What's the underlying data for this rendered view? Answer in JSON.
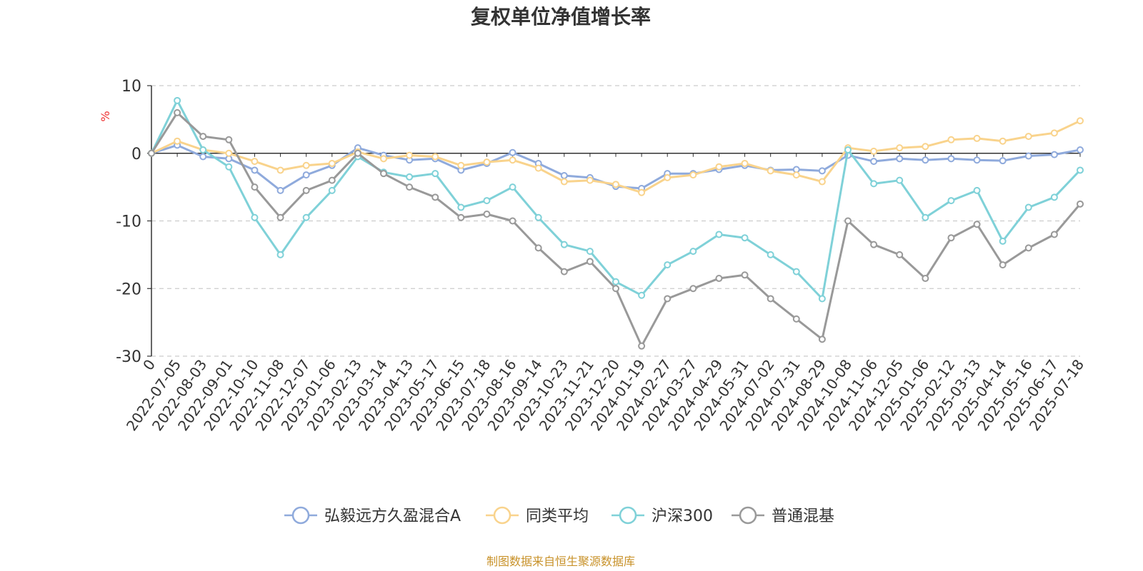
{
  "chart_data": {
    "type": "line",
    "title": "复权单位净值增长率",
    "ylabel": "%",
    "ylim": [
      -30,
      10
    ],
    "yticks": [
      10,
      0,
      -10,
      -20,
      -30
    ],
    "grid": "horizontal-dashed",
    "legend_position": "bottom-center",
    "categories": [
      "0",
      "2022-07-05",
      "2022-08-03",
      "2022-09-01",
      "2022-10-10",
      "2022-11-08",
      "2022-12-07",
      "2023-01-06",
      "2023-02-13",
      "2023-03-14",
      "2023-04-13",
      "2023-05-17",
      "2023-06-15",
      "2023-07-18",
      "2023-08-16",
      "2023-09-14",
      "2023-10-23",
      "2023-11-21",
      "2023-12-20",
      "2024-01-19",
      "2024-02-27",
      "2024-03-27",
      "2024-04-29",
      "2024-05-31",
      "2024-07-02",
      "2024-07-31",
      "2024-08-29",
      "2024-10-08",
      "2024-11-06",
      "2024-12-05",
      "2025-01-06",
      "2025-02-12",
      "2025-03-13",
      "2025-04-14",
      "2025-05-16",
      "2025-06-17",
      "2025-07-18"
    ],
    "series": [
      {
        "name": "弘毅远方久盈混合A",
        "color": "#8faadc",
        "values": [
          0,
          1.2,
          -0.5,
          -0.8,
          -2.5,
          -5.5,
          -3.2,
          -1.8,
          0.8,
          -0.3,
          -1.0,
          -0.8,
          -2.5,
          -1.5,
          0.1,
          -1.5,
          -3.3,
          -3.6,
          -4.9,
          -5.2,
          -3.0,
          -3.0,
          -2.4,
          -1.8,
          -2.5,
          -2.4,
          -2.6,
          -0.3,
          -1.2,
          -0.8,
          -1.0,
          -0.8,
          -1.0,
          -1.1,
          -0.4,
          -0.2,
          0.5
        ]
      },
      {
        "name": "同类平均",
        "color": "#f9d38c",
        "values": [
          0,
          1.8,
          0.5,
          0.0,
          -1.2,
          -2.5,
          -1.8,
          -1.5,
          0.2,
          -0.8,
          -0.3,
          -0.5,
          -1.8,
          -1.3,
          -1.0,
          -2.2,
          -4.2,
          -4.0,
          -4.6,
          -5.8,
          -3.6,
          -3.2,
          -2.0,
          -1.5,
          -2.6,
          -3.2,
          -4.2,
          0.8,
          0.3,
          0.8,
          1.0,
          2.0,
          2.2,
          1.8,
          2.5,
          3.0,
          4.8
        ]
      },
      {
        "name": "沪深300",
        "color": "#7fd1d8",
        "values": [
          0,
          7.8,
          0.5,
          -2.0,
          -9.5,
          -15.0,
          -9.5,
          -5.5,
          -0.5,
          -2.8,
          -3.5,
          -3.0,
          -8.0,
          -7.0,
          -5.0,
          -9.5,
          -13.5,
          -14.5,
          -19.0,
          -21.0,
          -16.5,
          -14.5,
          -12.0,
          -12.5,
          -15.0,
          -17.5,
          -21.5,
          0.5,
          -4.5,
          -4.0,
          -9.5,
          -7.0,
          -5.5,
          -13.0,
          -8.0,
          -6.5,
          -2.5
        ]
      },
      {
        "name": "普通混基",
        "color": "#999999",
        "values": [
          0,
          6.0,
          2.5,
          2.0,
          -5.0,
          -9.5,
          -5.5,
          -4.0,
          0.0,
          -3.0,
          -5.0,
          -6.5,
          -9.5,
          -9.0,
          -10.0,
          -14.0,
          -17.5,
          -16.0,
          -20.0,
          -28.5,
          -21.5,
          -20.0,
          -18.5,
          -18.0,
          -21.5,
          -24.5,
          -27.5,
          -10.0,
          -13.5,
          -15.0,
          -18.5,
          -12.5,
          -10.5,
          -16.5,
          -14.0,
          -12.0,
          -7.5
        ]
      }
    ]
  },
  "source_text": "制图数据来自恒生聚源数据库",
  "source_color": "#c8922a",
  "unit_color": "#ee3333"
}
